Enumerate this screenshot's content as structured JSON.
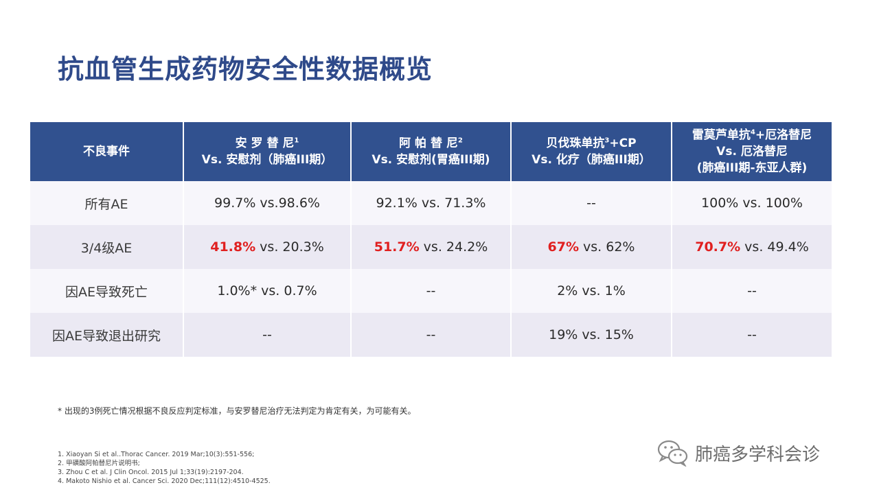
{
  "title": "抗血管生成药物安全性数据概览",
  "table": {
    "header": {
      "c0": "不良事件",
      "c1": {
        "line1": "安 罗 替 尼",
        "sup": "1",
        "line2": "Vs. 安慰剂（肺癌III期）"
      },
      "c2": {
        "line1": "阿 帕 替 尼",
        "sup": "2",
        "line2": "Vs. 安慰剂(胃癌III期)"
      },
      "c3": {
        "line1a": "贝伐珠单抗",
        "sup": "3",
        "line1b": "+CP",
        "line2": "Vs. 化疗（肺癌III期）"
      },
      "c4": {
        "line1a": "雷莫芦单抗",
        "sup": "4",
        "line1b": "+厄洛替尼",
        "line2": "Vs. 厄洛替尼",
        "line3": "(肺癌III期-东亚人群)"
      }
    },
    "rows": [
      {
        "label": "所有AE",
        "c1": "99.7% vs.98.6%",
        "c2": "92.1% vs. 71.3%",
        "c3": "--",
        "c4": "100% vs. 100%"
      },
      {
        "label": "3/4级AE",
        "c1_hi": "41.8%",
        "c1_rest": " vs. 20.3%",
        "c2_hi": "51.7%",
        "c2_rest": " vs. 24.2%",
        "c3_hi": "67%",
        "c3_rest": " vs. 62%",
        "c4_hi": "70.7%",
        "c4_rest": " vs. 49.4%"
      },
      {
        "label": "因AE导致死亡",
        "c1": "1.0%* vs. 0.7%",
        "c2": "--",
        "c3": "2% vs. 1%",
        "c4": "--"
      },
      {
        "label": "因AE导致退出研究",
        "c1": "--",
        "c2": "--",
        "c3": "19% vs. 15%",
        "c4": "--"
      }
    ]
  },
  "footnote": "* 出现的3例死亡情况根据不良反应判定标准，与安罗替尼治疗无法判定为肯定有关，为可能有关。",
  "references": [
    "1. Xiaoyan Si et al..Thorac Cancer. 2019 Mar;10(3):551-556;",
    "2. 甲磺酸阿帕替尼片说明书;",
    "3. Zhou C et al. J Clin Oncol. 2015 Jul 1;33(19):2197-204.",
    "4. Makoto Nishio et al. Cancer Sci. 2020  Dec;111(12):4510-4525."
  ],
  "watermark": {
    "icon": "wechat-icon",
    "text": "肺癌多学科会诊"
  },
  "colors": {
    "title": "#2f4a8a",
    "header_bg": "#31518f",
    "highlight": "#e02020",
    "row_light": "#f7f6fb",
    "row_dark": "#ebe9f3"
  }
}
